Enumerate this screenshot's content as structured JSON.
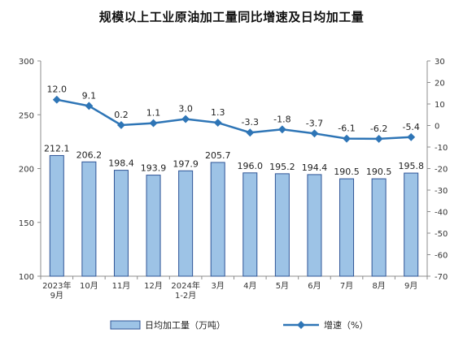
{
  "chart_data": {
    "type": "bar",
    "title": "规模以上工业原油加工量同比增速及日均加工量",
    "categories": [
      "2023年\n9月",
      "10月",
      "11月",
      "12月",
      "2024年\n1-2月",
      "3月",
      "4月",
      "5月",
      "6月",
      "7月",
      "8月",
      "9月"
    ],
    "series": [
      {
        "name": "日均加工量（万吨）",
        "type": "bar",
        "axis": "left",
        "values": [
          212.1,
          206.2,
          198.4,
          193.9,
          197.9,
          205.7,
          196.0,
          195.2,
          194.4,
          190.5,
          190.5,
          195.8
        ],
        "labels": [
          "212.1",
          "206.2",
          "198.4",
          "193.9",
          "197.9",
          "205.7",
          "196.0",
          "195.2",
          "194.4",
          "190.5",
          "190.5",
          "195.8"
        ]
      },
      {
        "name": "增速（%）",
        "type": "line",
        "axis": "right",
        "values": [
          12.0,
          9.1,
          0.2,
          1.1,
          3.0,
          1.3,
          -3.3,
          -1.8,
          -3.7,
          -6.1,
          -6.2,
          -5.4
        ],
        "labels": [
          "12.0",
          "9.1",
          "0.2",
          "1.1",
          "3.0",
          "1.3",
          "-3.3",
          "-1.8",
          "-3.7",
          "-6.1",
          "-6.2",
          "-5.4"
        ]
      }
    ],
    "y_left": {
      "ylim": [
        100,
        300
      ],
      "ticks": [
        "100",
        "150",
        "200",
        "250",
        "300"
      ]
    },
    "y_right": {
      "ylim": [
        -70,
        30
      ],
      "ticks": [
        "-70",
        "-60",
        "-50",
        "-40",
        "-30",
        "-20",
        "-10",
        "0",
        "10",
        "20",
        "30"
      ]
    },
    "legend": {
      "position": "bottom"
    },
    "grid": false,
    "colors": {
      "bar_fill": "#9DC3E6",
      "bar_stroke": "#2F5597",
      "line": "#2E75B6"
    }
  }
}
